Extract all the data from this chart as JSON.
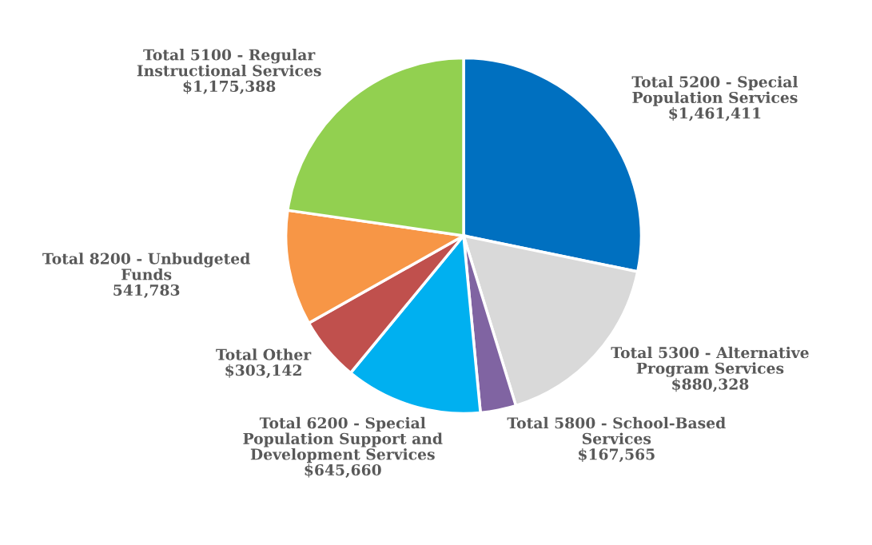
{
  "chart_data": {
    "type": "pie",
    "categories": [
      "Total 5200 - Special\nPopulation Services",
      "Total 5300 - Alternative\nProgram Services",
      "Total 5800 - School-Based\nServices",
      "Total 6200 - Special\nPopulation Support and\nDevelopment Services",
      "Total Other",
      "Total 8200 - Unbudgeted\nFunds",
      "Total 5100 - Regular\nInstructional Services"
    ],
    "values": [
      1461411,
      880328,
      167565,
      645660,
      303142,
      541783,
      1175388
    ],
    "value_labels": [
      "$1,461,411",
      "$880,328",
      "$167,565",
      "$645,660",
      "$303,142",
      "541,783",
      "$1,175,388"
    ],
    "colors": [
      "#0070c0",
      "#d9d9d9",
      "#8064a2",
      "#00b0f0",
      "#c0504d",
      "#f79646",
      "#92d050"
    ]
  }
}
